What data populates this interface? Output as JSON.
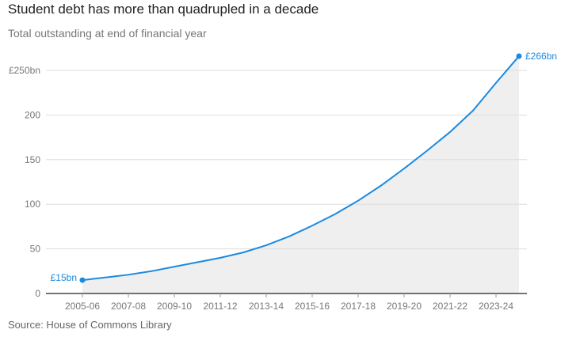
{
  "chart_data": {
    "type": "area",
    "title": "Student debt has more than quadrupled in a decade",
    "subtitle": "Total outstanding at end of financial year",
    "source": "Source: House of Commons Library",
    "xlabel": "",
    "ylabel": "",
    "ylim": [
      0,
      250
    ],
    "y_ticks": [
      0,
      50,
      100,
      150,
      200,
      250
    ],
    "y_tick_labels": [
      "0",
      "50",
      "100",
      "150",
      "200",
      "£250bn"
    ],
    "x_tick_labels": [
      "2005-06",
      "2007-08",
      "2009-10",
      "2011-12",
      "2013-14",
      "2015-16",
      "2017-18",
      "2019-20",
      "2021-22",
      "2023-24"
    ],
    "grid": true,
    "x": [
      "2005-06",
      "2006-07",
      "2007-08",
      "2008-09",
      "2009-10",
      "2010-11",
      "2011-12",
      "2012-13",
      "2013-14",
      "2014-15",
      "2015-16",
      "2016-17",
      "2017-18",
      "2018-19",
      "2019-20",
      "2020-21",
      "2021-22",
      "2022-23",
      "2023-24",
      "2024-25"
    ],
    "values": [
      15,
      18,
      21,
      25,
      30,
      35,
      40,
      46,
      54,
      64,
      76,
      89,
      104,
      121,
      140,
      160,
      181,
      205,
      236,
      266
    ],
    "annotations": {
      "start": "£15bn",
      "end": "£266bn"
    },
    "colors": {
      "line": "#1a8ae0",
      "area": "#efefef",
      "grid": "#dddddd",
      "axis": "#222222"
    }
  }
}
